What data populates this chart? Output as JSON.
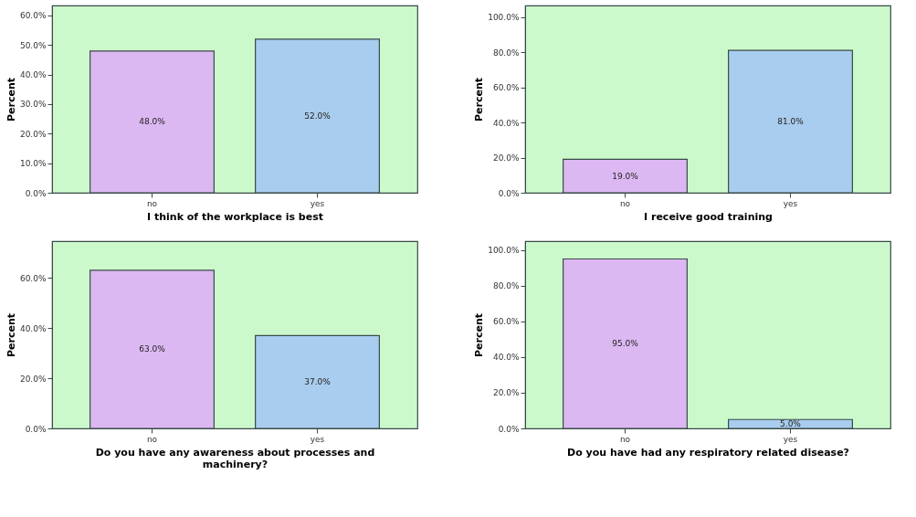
{
  "chart_data": [
    {
      "type": "bar",
      "categories": [
        "no",
        "yes"
      ],
      "values": [
        48.0,
        52.0
      ],
      "colors": [
        "#dcb8f2",
        "#a9cdee"
      ],
      "value_labels": [
        "48.0%",
        "52.0%"
      ],
      "xlabel": "I think of the workplace is best",
      "ylabel": "Percent",
      "ylim": [
        0,
        63.4
      ],
      "yticks": [
        {
          "value": 0,
          "label": "0.0%"
        },
        {
          "value": 10,
          "label": "10.0%"
        },
        {
          "value": 20,
          "label": "20.0%"
        },
        {
          "value": 30,
          "label": "30.0%"
        },
        {
          "value": 40,
          "label": "40.0%"
        },
        {
          "value": 50,
          "label": "50.0%"
        },
        {
          "value": 60,
          "label": "60.0%"
        }
      ]
    },
    {
      "type": "bar",
      "categories": [
        "no",
        "yes"
      ],
      "values": [
        19.0,
        81.0
      ],
      "colors": [
        "#dcb8f2",
        "#a9cdee"
      ],
      "value_labels": [
        "19.0%",
        "81.0%"
      ],
      "xlabel": "I receive good training",
      "ylabel": "Percent",
      "ylim": [
        0,
        106.5
      ],
      "yticks": [
        {
          "value": 0,
          "label": "0.0%"
        },
        {
          "value": 20,
          "label": "20.0%"
        },
        {
          "value": 40,
          "label": "40.0%"
        },
        {
          "value": 60,
          "label": "60.0%"
        },
        {
          "value": 80,
          "label": "80.0%"
        },
        {
          "value": 100,
          "label": "100.0%"
        }
      ]
    },
    {
      "type": "bar",
      "categories": [
        "no",
        "yes"
      ],
      "values": [
        63.0,
        37.0
      ],
      "colors": [
        "#dcb8f2",
        "#a9cdee"
      ],
      "value_labels": [
        "63.0%",
        "37.0%"
      ],
      "xlabel": "Do you have any awareness about processes and machinery?",
      "ylabel": "Percent",
      "ylim": [
        0,
        74.6
      ],
      "yticks": [
        {
          "value": 0,
          "label": "0.0%"
        },
        {
          "value": 20,
          "label": "20.0%"
        },
        {
          "value": 40,
          "label": "40.0%"
        },
        {
          "value": 60,
          "label": "60.0%"
        }
      ]
    },
    {
      "type": "bar",
      "categories": [
        "no",
        "yes"
      ],
      "values": [
        95.0,
        5.0
      ],
      "colors": [
        "#dcb8f2",
        "#a9cdee"
      ],
      "value_labels": [
        "95.0%",
        "5.0%"
      ],
      "xlabel": "Do you have had any respiratory related disease?",
      "ylabel": "Percent",
      "ylim": [
        0,
        105
      ],
      "yticks": [
        {
          "value": 0,
          "label": "0.0%"
        },
        {
          "value": 20,
          "label": "20.0%"
        },
        {
          "value": 40,
          "label": "40.0%"
        },
        {
          "value": 60,
          "label": "60.0%"
        },
        {
          "value": 80,
          "label": "80.0%"
        },
        {
          "value": 100,
          "label": "100.0%"
        }
      ]
    }
  ]
}
